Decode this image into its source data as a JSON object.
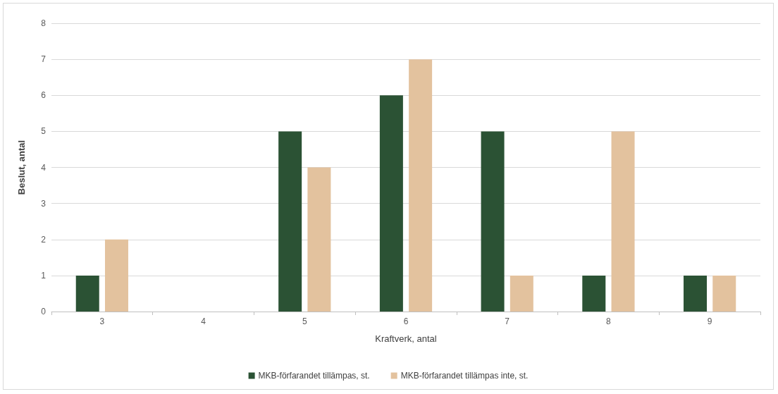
{
  "chart_data": {
    "type": "bar",
    "xlabel": "Kraftverk, antal",
    "ylabel": "Beslut, antal",
    "categories": [
      "3",
      "4",
      "5",
      "6",
      "7",
      "8",
      "9"
    ],
    "series": [
      {
        "name": "MKB-förfarandet tillämpas, st.",
        "color": "#2b5234",
        "values": [
          1,
          0,
          5,
          6,
          5,
          1,
          1
        ]
      },
      {
        "name": "MKB-förfarandet tillämpas inte, st.",
        "color": "#e3c29e",
        "values": [
          2,
          0,
          4,
          7,
          1,
          5,
          1
        ]
      }
    ],
    "ylim": [
      0,
      8
    ],
    "yticks": [
      0,
      1,
      2,
      3,
      4,
      5,
      6,
      7,
      8
    ],
    "grid": "y",
    "legend": "bottom"
  }
}
